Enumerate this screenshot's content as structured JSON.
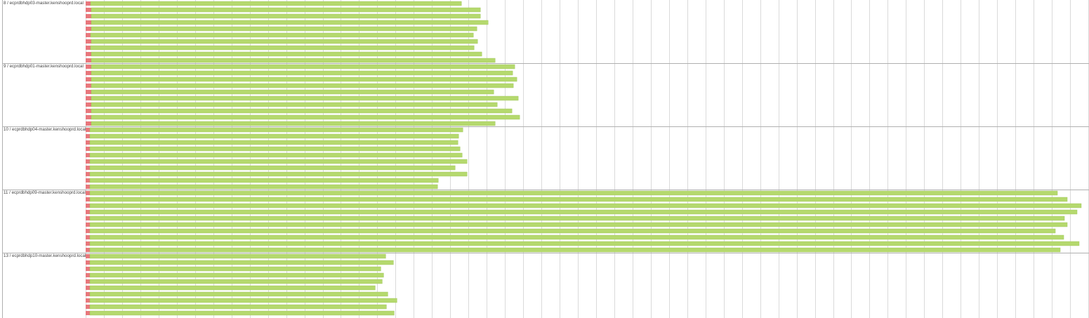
{
  "chart_data": {
    "type": "bar",
    "orientation": "horizontal",
    "stacked": true,
    "grid": true,
    "colors": {
      "segment_a": "#e8777c",
      "segment_b": "#b5d96e",
      "grid": "#dadada",
      "separator": "#b0b0b0"
    },
    "groups": [
      {
        "label": "8 / ecprdbhdp03-master.kenshooprd.local",
        "rows": [
          {
            "a": 7,
            "b": 529
          },
          {
            "a": 8,
            "b": 555
          },
          {
            "a": 8,
            "b": 555
          },
          {
            "a": 8,
            "b": 566
          },
          {
            "a": 8,
            "b": 550
          },
          {
            "a": 7,
            "b": 546
          },
          {
            "a": 8,
            "b": 551
          },
          {
            "a": 7,
            "b": 547
          },
          {
            "a": 8,
            "b": 557
          },
          {
            "a": 8,
            "b": 576
          }
        ]
      },
      {
        "label": "9 / ecprdbhdp01-master.kenshooprd.local",
        "rows": [
          {
            "a": 8,
            "b": 604
          },
          {
            "a": 8,
            "b": 601
          },
          {
            "a": 8,
            "b": 607
          },
          {
            "a": 8,
            "b": 602
          },
          {
            "a": 8,
            "b": 574
          },
          {
            "a": 8,
            "b": 609
          },
          {
            "a": 8,
            "b": 579
          },
          {
            "a": 8,
            "b": 600
          },
          {
            "a": 8,
            "b": 611
          },
          {
            "a": 8,
            "b": 576
          }
        ]
      },
      {
        "label": "10 / ecprdbhdp04-master.kenshooprd.local",
        "rows": [
          {
            "a": 6,
            "b": 532
          },
          {
            "a": 6,
            "b": 526
          },
          {
            "a": 6,
            "b": 525
          },
          {
            "a": 6,
            "b": 528
          },
          {
            "a": 6,
            "b": 531
          },
          {
            "a": 6,
            "b": 538
          },
          {
            "a": 6,
            "b": 521
          },
          {
            "a": 6,
            "b": 538
          },
          {
            "a": 6,
            "b": 497
          },
          {
            "a": 6,
            "b": 496
          }
        ]
      },
      {
        "label": "11 / ecprdbhdp09-master.kenshooprd.local",
        "rows": [
          {
            "a": 6,
            "b": 1380
          },
          {
            "a": 6,
            "b": 1394
          },
          {
            "a": 6,
            "b": 1414
          },
          {
            "a": 6,
            "b": 1408
          },
          {
            "a": 6,
            "b": 1390
          },
          {
            "a": 6,
            "b": 1394
          },
          {
            "a": 6,
            "b": 1377
          },
          {
            "a": 6,
            "b": 1389
          },
          {
            "a": 6,
            "b": 1411
          },
          {
            "a": 6,
            "b": 1384
          }
        ]
      },
      {
        "label": "13 / ecprdbhdp10-master.kenshooprd.local",
        "rows": [
          {
            "a": 6,
            "b": 422
          },
          {
            "a": 6,
            "b": 433
          },
          {
            "a": 6,
            "b": 415
          },
          {
            "a": 6,
            "b": 419
          },
          {
            "a": 6,
            "b": 417
          },
          {
            "a": 6,
            "b": 407
          },
          {
            "a": 6,
            "b": 425
          },
          {
            "a": 6,
            "b": 438
          },
          {
            "a": 6,
            "b": 423
          },
          {
            "a": 6,
            "b": 434
          }
        ]
      }
    ],
    "xlim": [
      0,
      1430
    ],
    "xtick_step": 26
  }
}
